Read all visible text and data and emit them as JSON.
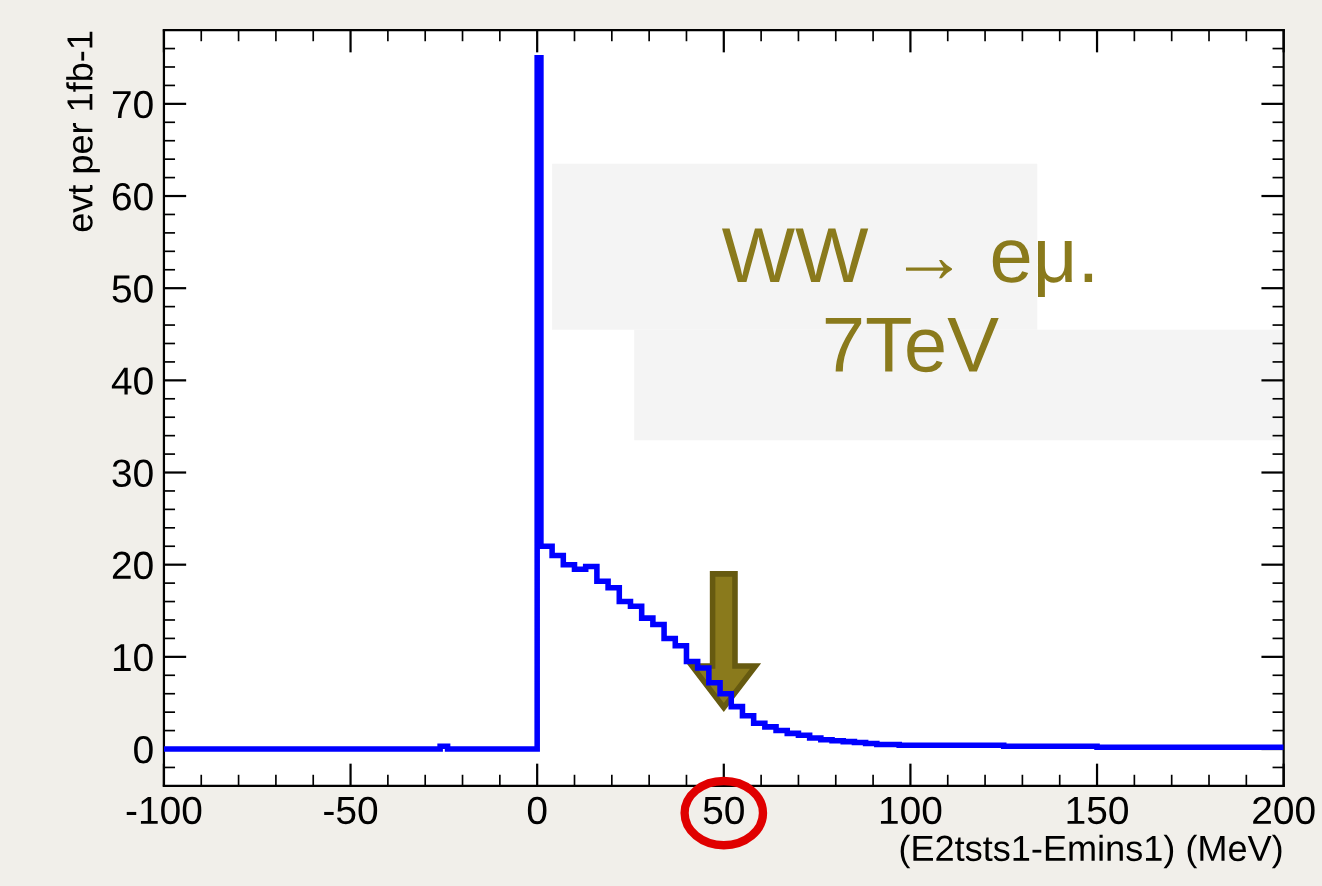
{
  "chart_data": {
    "type": "histogram",
    "bins": [
      -100,
      -26,
      -24,
      0,
      1,
      4,
      7,
      10,
      13,
      16,
      19,
      22,
      25,
      28,
      31,
      34,
      37,
      40,
      43,
      46,
      49,
      52,
      55,
      58,
      61,
      64,
      67,
      70,
      73,
      76,
      79,
      82,
      85,
      88,
      91,
      94,
      97,
      100,
      125,
      150,
      175,
      200
    ],
    "values": [
      0,
      0.3,
      0,
      75,
      22,
      21,
      20,
      19.5,
      19.8,
      18.2,
      17.5,
      16,
      15.5,
      14.2,
      13.5,
      12,
      11.2,
      9.5,
      8.8,
      7.2,
      6,
      4.6,
      3.6,
      2.8,
      2.4,
      2,
      1.7,
      1.5,
      1.2,
      1.0,
      0.9,
      0.8,
      0.7,
      0.6,
      0.5,
      0.5,
      0.4,
      0.4,
      0.3,
      0.2,
      0.2
    ],
    "color": "#0000ff",
    "xlim": [
      -100,
      200
    ],
    "ylim": [
      -4,
      78
    ],
    "xticks": [
      -100,
      -50,
      0,
      50,
      100,
      150,
      200
    ],
    "yticks": [
      0,
      10,
      20,
      30,
      40,
      50,
      60,
      70
    ],
    "xlabel": "(E2tsts1-Emins1) (MeV)",
    "ylabel": "evt per 1fb-1",
    "annotations": [
      "WW → eμ.\n7TeV"
    ]
  }
}
